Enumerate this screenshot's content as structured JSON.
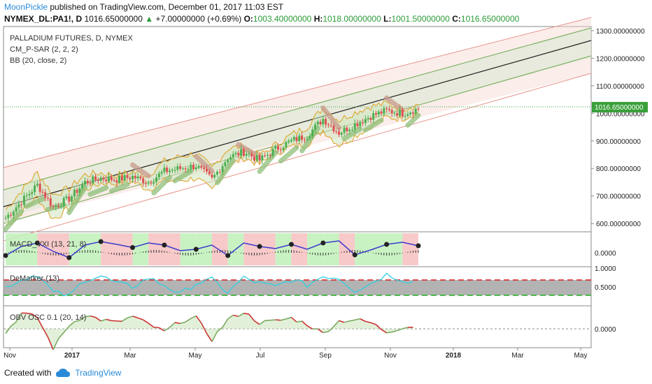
{
  "header": {
    "user": "MoonPickle",
    "published_text": "published on TradingView.com, December 01, 2017 11:03 EST",
    "symbol": "NYMEX_DL:PA1!, D",
    "last": "1016.65000000",
    "change": "+7.00000000 (+0.69%)",
    "open_label": "O:",
    "open": "1003.40000000",
    "high_label": "H:",
    "high": "1018.00000000",
    "low_label": "L:",
    "low": "1001.50000000",
    "close_label": "C:",
    "close": "1016.65000000"
  },
  "footer": {
    "created_with": "Created with",
    "brand": "TradingView"
  },
  "panes": {
    "price": {
      "title": "PALLADIUM FUTURES, D, NYMEX",
      "ind1": "CM_P-SAR (2, 2, 2)",
      "ind2": "BB (20, close, 2)",
      "last_label": "1016.65000000"
    },
    "macd": {
      "title": "MACD_VXI (13, 21, 8)"
    },
    "demarker": {
      "title": "DeMarker (13)"
    },
    "obv": {
      "title": "OBV OSC 0.1 (20, 14)"
    }
  },
  "colors": {
    "up": "#4caf50",
    "down": "#e05050",
    "channel_green": "#6aa84f",
    "channel_red": "#e88080",
    "bb": "#e0a020",
    "sar": "#c99a8c",
    "macd_line": "#3a3acc",
    "demarker_line": "#30d0e0",
    "obv_up": "#7aaa60",
    "obv_down": "#cc3333",
    "last_price": "#3aa03a"
  },
  "chart_data": [
    {
      "type": "candlestick",
      "title": "PALLADIUM FUTURES, D, NYMEX",
      "x_ticks": [
        "Nov",
        "2017",
        "Mar",
        "May",
        "Jul",
        "Sep",
        "Nov",
        "2018",
        "Mar",
        "May"
      ],
      "y_ticks": [
        "600.00000000",
        "700.00000000",
        "800.00000000",
        "900.00000000",
        "1000.00000000",
        "1100.00000000",
        "1200.00000000",
        "1300.00000000"
      ],
      "ylim": [
        575,
        1310
      ],
      "series": [
        {
          "name": "close",
          "x": [
            "2016-11-01",
            "2016-11-15",
            "2016-12-01",
            "2016-12-15",
            "2017-01-01",
            "2017-01-15",
            "2017-02-01",
            "2017-02-15",
            "2017-03-01",
            "2017-03-15",
            "2017-04-01",
            "2017-04-15",
            "2017-05-01",
            "2017-05-15",
            "2017-06-01",
            "2017-06-15",
            "2017-07-01",
            "2017-07-15",
            "2017-08-01",
            "2017-08-15",
            "2017-09-01",
            "2017-09-15",
            "2017-10-01",
            "2017-10-15",
            "2017-11-01",
            "2017-11-15",
            "2017-12-01"
          ],
          "values": [
            620,
            680,
            740,
            660,
            690,
            750,
            765,
            760,
            770,
            750,
            790,
            800,
            810,
            760,
            840,
            860,
            830,
            870,
            900,
            920,
            980,
            930,
            960,
            990,
            1010,
            1000,
            1016.65
          ]
        }
      ]
    },
    {
      "type": "line",
      "title": "MACD_VXI (13, 21, 8)",
      "y_ticks": [
        "0.0000"
      ],
      "series": [
        {
          "name": "macd",
          "values": [
            -8,
            18,
            28,
            4,
            -14,
            22,
            32,
            24,
            15,
            28,
            22,
            6,
            10,
            22,
            -8,
            28,
            18,
            12,
            24,
            10,
            28,
            34,
            -6,
            8,
            24,
            30,
            20
          ]
        }
      ]
    },
    {
      "type": "line",
      "title": "DeMarker (13)",
      "y_ticks": [
        "1.0000",
        "0.5000"
      ],
      "ylim": [
        0,
        1
      ],
      "series": [
        {
          "name": "demarker",
          "values": [
            0.5,
            0.7,
            0.85,
            0.35,
            0.25,
            0.7,
            0.8,
            0.6,
            0.5,
            0.75,
            0.55,
            0.3,
            0.6,
            0.7,
            0.35,
            0.75,
            0.6,
            0.5,
            0.7,
            0.55,
            0.8,
            0.75,
            0.4,
            0.6,
            0.85,
            0.7,
            0.6
          ]
        }
      ]
    },
    {
      "type": "line",
      "title": "OBV OSC 0.1 (20, 14)",
      "y_ticks": [
        "0.0000"
      ],
      "series": [
        {
          "name": "obv",
          "values": [
            -5,
            20,
            15,
            -25,
            5,
            18,
            12,
            8,
            16,
            6,
            -4,
            10,
            14,
            -14,
            12,
            22,
            8,
            10,
            14,
            6,
            -6,
            10,
            12,
            8,
            -4,
            2,
            4
          ]
        }
      ]
    }
  ]
}
